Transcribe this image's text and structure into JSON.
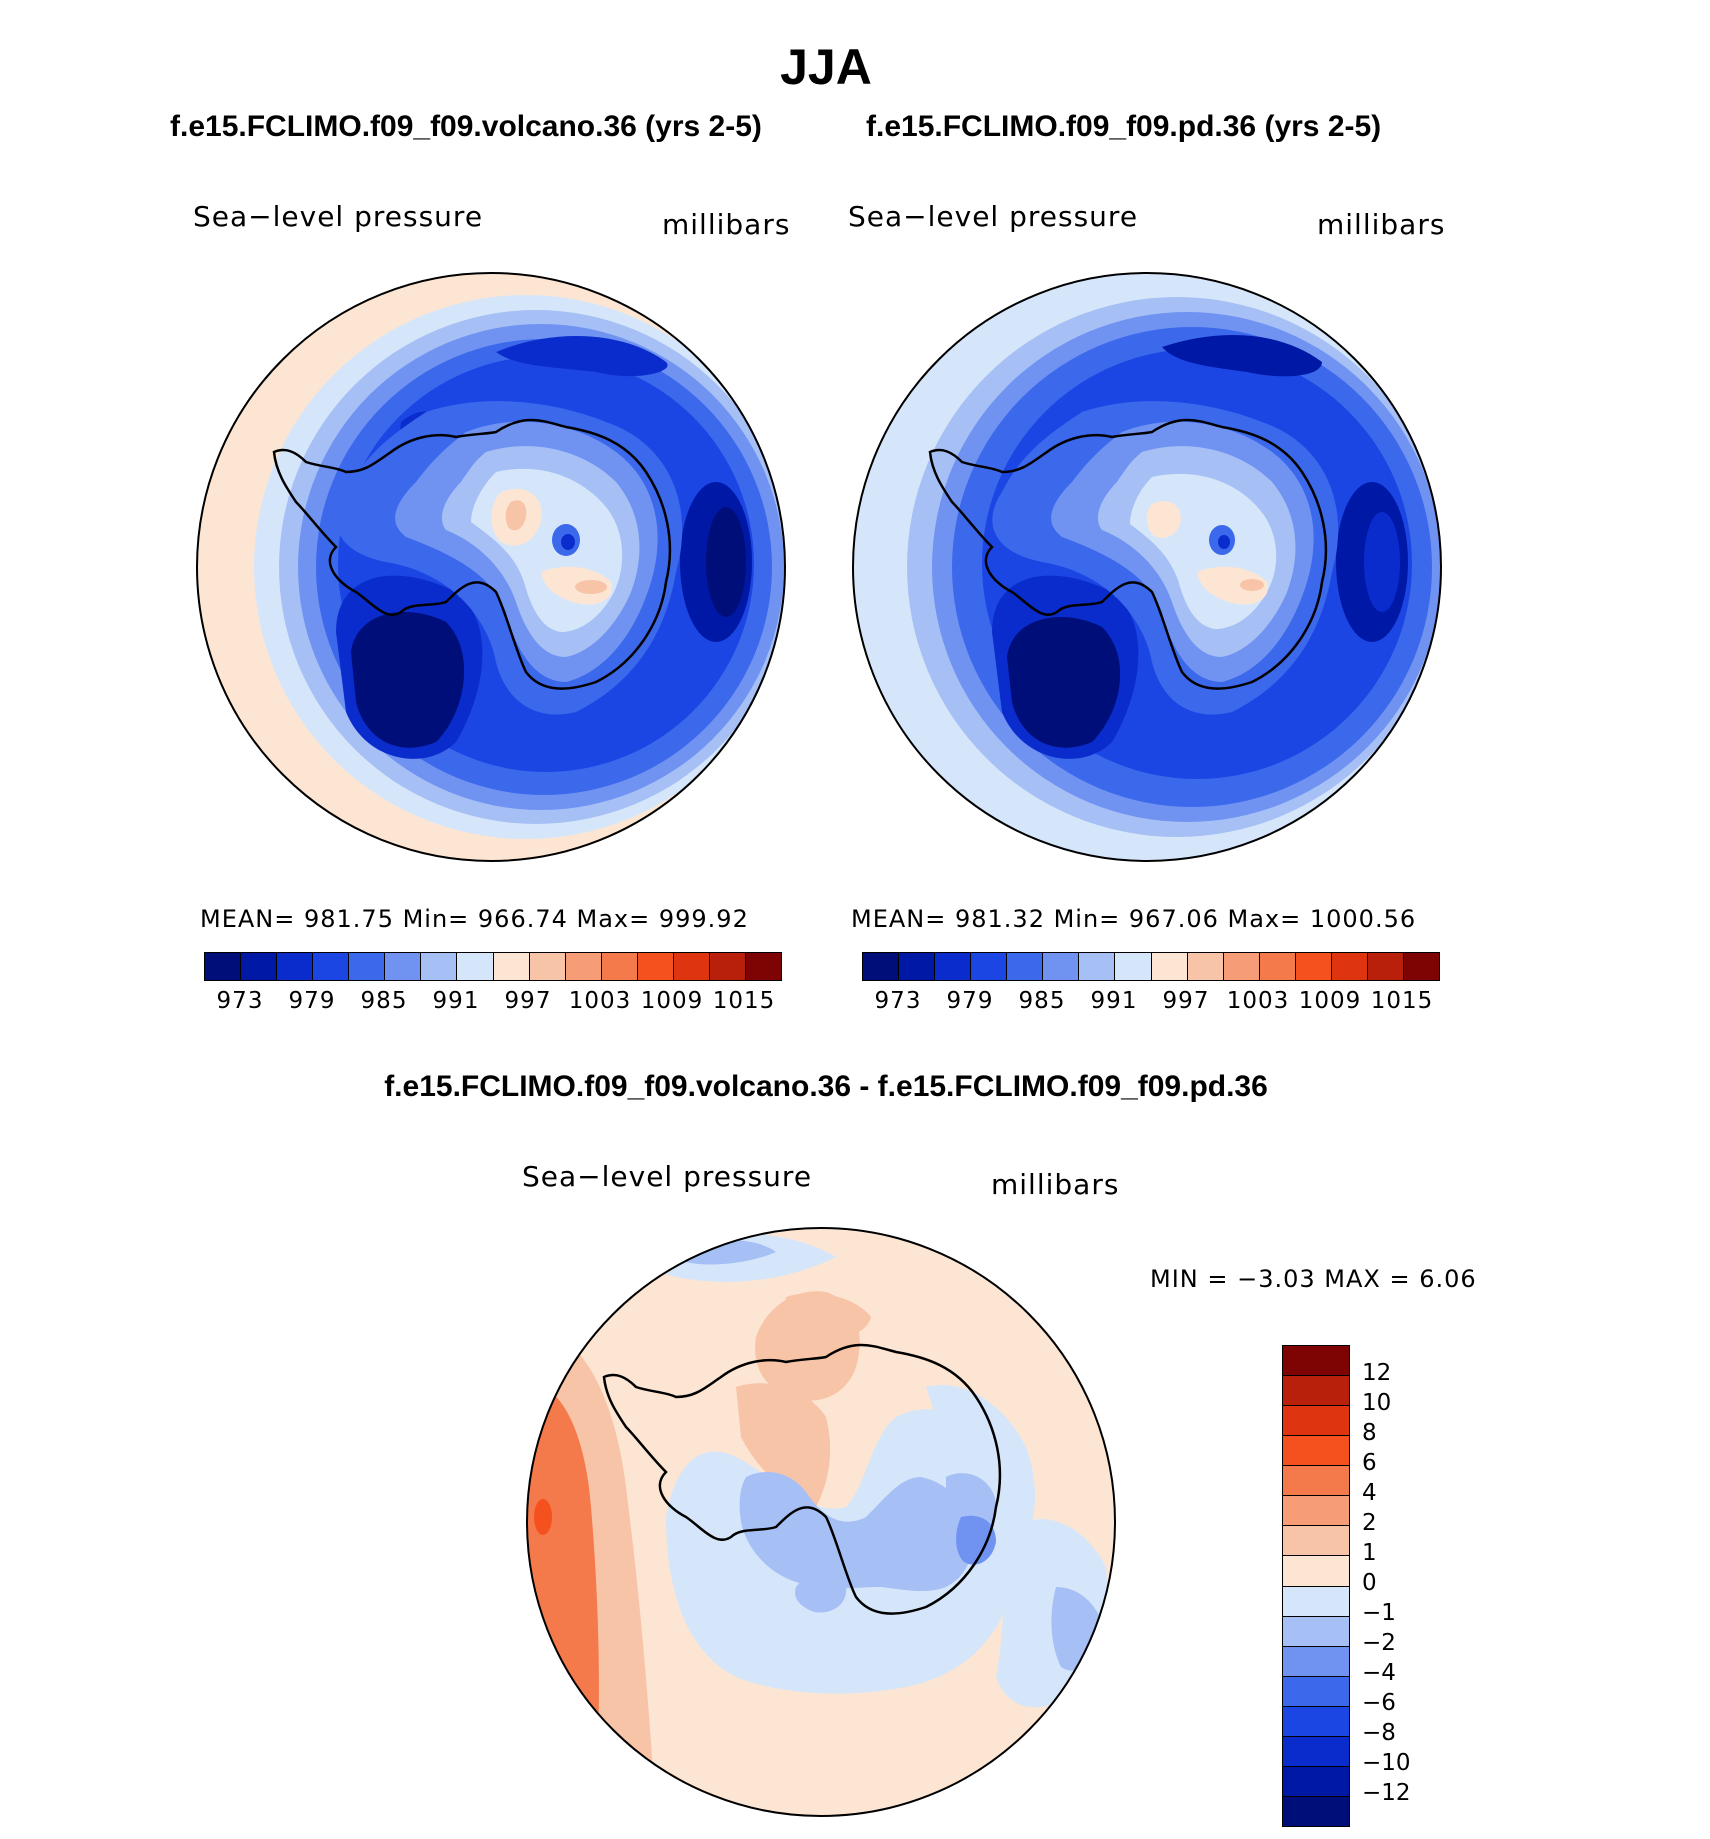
{
  "title": "JJA",
  "units": "millibars",
  "variable": "Sea−level pressure",
  "panels": [
    {
      "title": "f.e15.FCLIMO.f09_f09.volcano.36 (yrs 2-5)",
      "stats": "MEAN= 981.75   Min= 966.74   Max= 999.92"
    },
    {
      "title": "f.e15.FCLIMO.f09_f09.pd.36 (yrs 2-5)",
      "stats": "MEAN= 981.32   Min= 967.06   Max= 1000.56"
    }
  ],
  "difference": {
    "title": "f.e15.FCLIMO.f09_f09.volcano.36 - f.e15.FCLIMO.f09_f09.pd.36",
    "minmax": "MIN =   −3.03 MAX =     6.06"
  },
  "colorbar_top": {
    "colors": [
      "#000e7a",
      "#0018a6",
      "#0a2ccc",
      "#1c46e4",
      "#3c68ec",
      "#7093f2",
      "#a6c0f6",
      "#d6e6fa",
      "#fce5d3",
      "#f8c4a8",
      "#f69d78",
      "#f47a4b",
      "#f4511e",
      "#de3410",
      "#b8200c",
      "#7e0404"
    ],
    "tick_labels": [
      "973",
      "979",
      "985",
      "991",
      "997",
      "1003",
      "1009",
      "1015"
    ]
  },
  "colorbar_diff": {
    "colors": [
      "#7e0404",
      "#b8200c",
      "#de3410",
      "#f4511e",
      "#f47a4b",
      "#f69d78",
      "#f8c4a8",
      "#fce5d3",
      "#d6e6fa",
      "#a6c0f6",
      "#7093f2",
      "#3c68ec",
      "#1c46e4",
      "#0a2ccc",
      "#0018a6",
      "#000e7a"
    ],
    "tick_labels": [
      "12",
      "10",
      "8",
      "6",
      "4",
      "2",
      "1",
      "0",
      "−1",
      "−2",
      "−4",
      "−6",
      "−8",
      "−10",
      "−12"
    ]
  }
}
